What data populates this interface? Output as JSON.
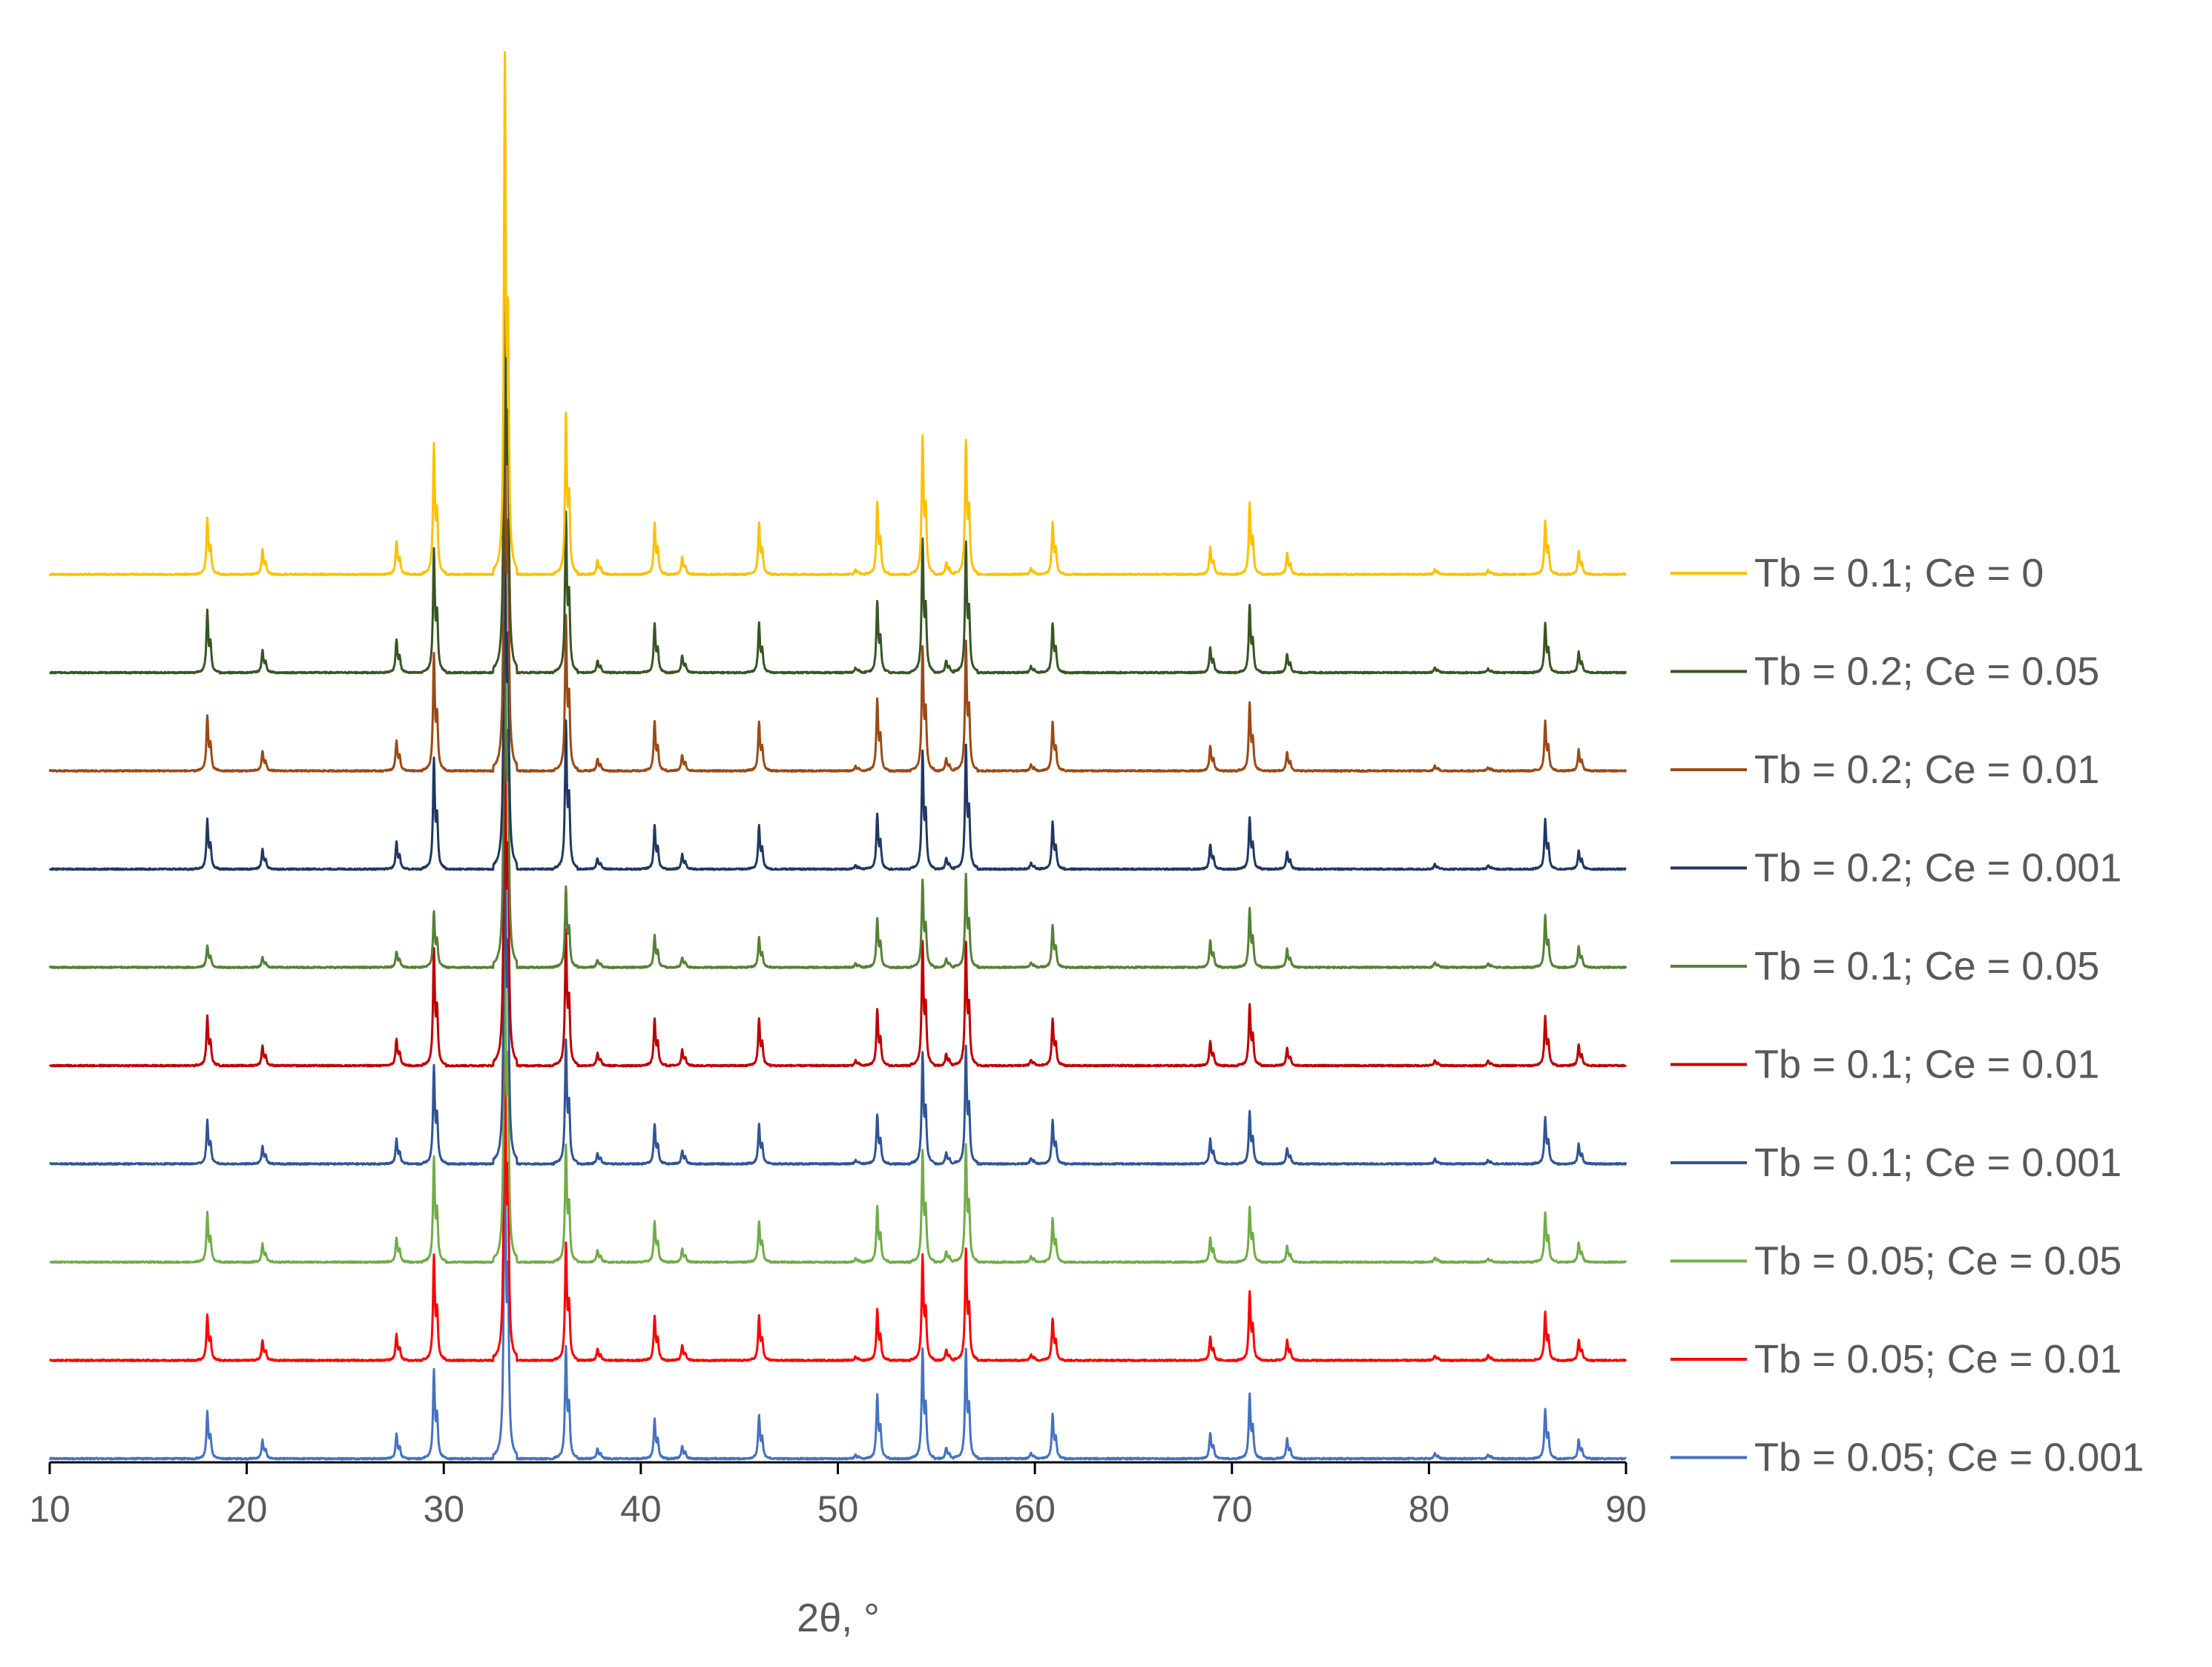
{
  "chart_data": {
    "type": "line",
    "title": "",
    "xlabel": "2θ, °",
    "ylabel": "",
    "xlim": [
      10,
      90
    ],
    "x_ticks": [
      10,
      20,
      30,
      40,
      50,
      60,
      70,
      80,
      90
    ],
    "x_tick_labels": [
      "10",
      "20",
      "30",
      "40",
      "50",
      "60",
      "70",
      "80",
      "90"
    ],
    "grid": false,
    "y_axis_visible": false,
    "stacked_offset": true,
    "legend_position": "right",
    "peak_positions": [
      18.0,
      20.8,
      27.6,
      29.5,
      33.1,
      36.2,
      37.8,
      40.7,
      42.1,
      46.0,
      50.9,
      52.0,
      54.3,
      55.5,
      56.5,
      59.8,
      60.9,
      68.9,
      70.9,
      72.8,
      80.3,
      83.0,
      85.9,
      87.6
    ],
    "series": [
      {
        "name": "Tb = 0.1; Ce = 0",
        "color": "#FFC000",
        "peak_heights": [
          45,
          20,
          27,
          105,
          420,
          130,
          12,
          42,
          14,
          42,
          4,
          58,
          112,
          10,
          108,
          5,
          42,
          22,
          58,
          17,
          4,
          3,
          43,
          19
        ]
      },
      {
        "name": "Tb = 0.2; Ce = 0.05",
        "color": "#375623",
        "peak_heights": [
          50,
          18,
          27,
          100,
          400,
          130,
          10,
          40,
          14,
          40,
          4,
          58,
          108,
          10,
          105,
          5,
          40,
          20,
          55,
          15,
          4,
          3,
          40,
          17
        ]
      },
      {
        "name": "Tb = 0.2; Ce = 0.01",
        "color": "#9C4A13",
        "peak_heights": [
          45,
          16,
          25,
          95,
          380,
          125,
          10,
          40,
          13,
          40,
          4,
          58,
          100,
          10,
          105,
          5,
          40,
          20,
          55,
          15,
          4,
          3,
          40,
          17
        ]
      },
      {
        "name": "Tb = 0.2; Ce = 0.001",
        "color": "#1F3864",
        "peak_heights": [
          40,
          16,
          22,
          90,
          360,
          120,
          9,
          35,
          12,
          35,
          3,
          45,
          95,
          9,
          100,
          5,
          38,
          20,
          42,
          14,
          4,
          3,
          40,
          15
        ]
      },
      {
        "name": "Tb = 0.1; Ce = 0.05",
        "color": "#548235",
        "peak_heights": [
          18,
          8,
          13,
          45,
          360,
          65,
          6,
          26,
          8,
          24,
          3,
          40,
          70,
          7,
          75,
          4,
          34,
          22,
          48,
          15,
          4,
          3,
          42,
          17
        ]
      },
      {
        "name": "Tb = 0.1; Ce = 0.01",
        "color": "#C00000",
        "peak_heights": [
          40,
          16,
          22,
          95,
          340,
          110,
          10,
          38,
          13,
          38,
          4,
          45,
          100,
          10,
          100,
          5,
          38,
          20,
          50,
          14,
          4,
          4,
          40,
          17
        ]
      },
      {
        "name": "Tb = 0.1; Ce = 0.001",
        "color": "#2F5597",
        "peak_heights": [
          35,
          14,
          20,
          80,
          340,
          100,
          9,
          32,
          11,
          32,
          3,
          40,
          90,
          9,
          95,
          5,
          35,
          20,
          42,
          13,
          4,
          3,
          38,
          16
        ]
      },
      {
        "name": "Tb = 0.05; Ce = 0.05",
        "color": "#70AD47",
        "peak_heights": [
          40,
          15,
          20,
          85,
          320,
          95,
          10,
          33,
          11,
          33,
          3,
          45,
          90,
          9,
          95,
          5,
          35,
          20,
          45,
          13,
          4,
          3,
          40,
          16
        ]
      },
      {
        "name": "Tb = 0.05; Ce = 0.01",
        "color": "#FF0000",
        "peak_heights": [
          37,
          16,
          21,
          85,
          300,
          95,
          9,
          36,
          12,
          36,
          3,
          41,
          85,
          9,
          90,
          5,
          34,
          19,
          56,
          17,
          4,
          4,
          39,
          17
        ]
      },
      {
        "name": "Tb = 0.05; Ce = 0.001",
        "color": "#4472C4",
        "peak_heights": [
          38,
          15,
          20,
          72,
          300,
          90,
          8,
          32,
          10,
          35,
          3,
          52,
          88,
          9,
          88,
          5,
          36,
          21,
          52,
          16,
          4,
          3,
          40,
          16
        ]
      }
    ]
  }
}
